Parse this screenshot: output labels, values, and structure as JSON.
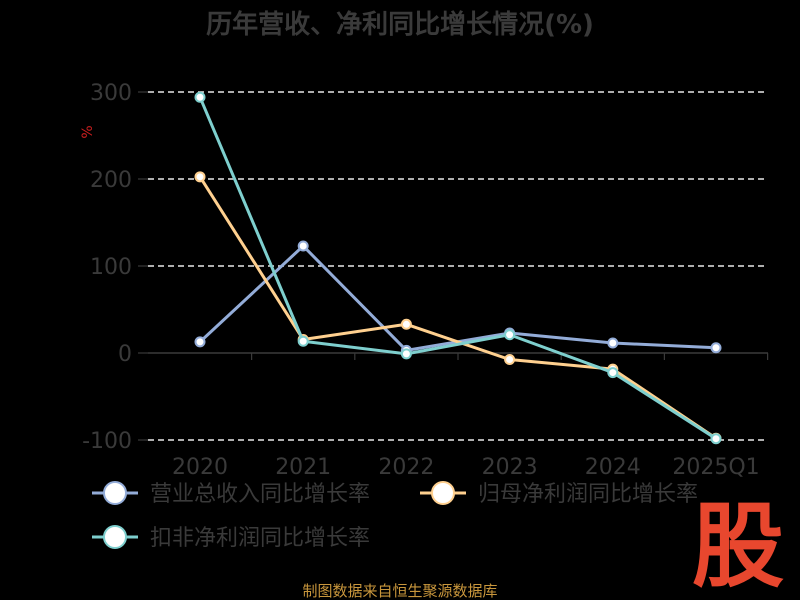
{
  "chart_data": {
    "type": "line",
    "title": "历年营收、净利同比增长情况(%)",
    "ylabel": "%",
    "xlabel": "",
    "categories": [
      "2020",
      "2021",
      "2022",
      "2023",
      "2024",
      "2025Q1"
    ],
    "ylim": [
      -100,
      300
    ],
    "yticks": [
      -100,
      0,
      100,
      200,
      300
    ],
    "grid": true,
    "legend_position": "bottom",
    "series": [
      {
        "name": "营业总收入同比增长率",
        "color": "#93acd8",
        "values": [
          12.8,
          123.0,
          3.0,
          23.0,
          11.5,
          6.0
        ]
      },
      {
        "name": "归母净利润同比增长率",
        "color": "#ffd08f",
        "values": [
          202.5,
          15.5,
          33.0,
          -7.5,
          -18.5,
          -98.0
        ]
      },
      {
        "name": "扣非净利润同比增长率",
        "color": "#7ecfce",
        "values": [
          294.0,
          13.5,
          -1.0,
          21.0,
          -22.5,
          -98.5
        ]
      }
    ]
  },
  "source": "制图数据来自恒生聚源数据库",
  "logo_text": "股"
}
